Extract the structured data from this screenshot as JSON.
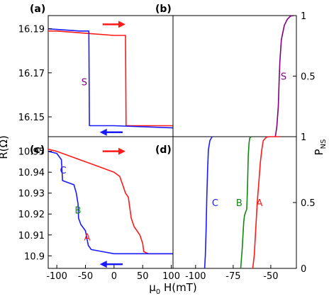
{
  "figure": {
    "y_axis_left_label": "R(Ω)",
    "y_axis_right_label": "P",
    "y_axis_right_label_sub": "NS",
    "x_axis_label": "μ",
    "x_axis_label_sub": "0",
    "x_axis_label_rest": " H(mT)"
  },
  "colors": {
    "red": "#ff1a1a",
    "blue": "#1a1aff",
    "green": "#118811",
    "purple": "#800080"
  },
  "chart_data": [
    {
      "panel": "(a)",
      "type": "line",
      "xlim": [
        -115,
        103
      ],
      "ylim": [
        16.141,
        16.196
      ],
      "yticks": [
        16.15,
        16.17,
        16.19
      ],
      "ytick_labels": [
        "16.15",
        "16.17",
        "16.19"
      ],
      "grid": false,
      "series": [
        {
          "color": "red",
          "points": [
            [
              -115,
              16.189
            ],
            [
              -100,
              16.189
            ],
            [
              -50,
              16.188
            ],
            [
              0,
              16.187
            ],
            [
              20,
              16.187
            ],
            [
              21,
              16.146
            ],
            [
              60,
              16.146
            ],
            [
              103,
              16.146
            ]
          ]
        },
        {
          "color": "blue",
          "points": [
            [
              -115,
              16.19
            ],
            [
              -60,
              16.189
            ],
            [
              -44,
              16.189
            ],
            [
              -43,
              16.146
            ],
            [
              0,
              16.146
            ],
            [
              103,
              16.145
            ]
          ]
        }
      ],
      "annotations": [
        {
          "text": "S",
          "x": -52,
          "y": 16.166,
          "color": "purple"
        },
        {
          "text": "arrow-right",
          "x": -20,
          "y": 16.192,
          "x_end": 15,
          "color": "red"
        },
        {
          "text": "arrow-left",
          "x": 15,
          "y": 16.143,
          "x_end": -20,
          "color": "blue"
        }
      ]
    },
    {
      "panel": "(b)",
      "type": "line",
      "xlim": [
        -115,
        -33
      ],
      "ylim": [
        0,
        1
      ],
      "yticks": [
        0.5,
        1
      ],
      "ytick_labels": [
        "0.5",
        "1"
      ],
      "grid": false,
      "series": [
        {
          "color": "purple",
          "points": [
            [
              -47,
              0
            ],
            [
              -46,
              0.08
            ],
            [
              -45,
              0.25
            ],
            [
              -44.5,
              0.45
            ],
            [
              -44,
              0.62
            ],
            [
              -43,
              0.8
            ],
            [
              -41,
              0.92
            ],
            [
              -39,
              0.97
            ],
            [
              -37,
              0.995
            ],
            [
              -35,
              1.0
            ]
          ]
        }
      ],
      "annotations": [
        {
          "text": "S",
          "x": -41.5,
          "y": 0.5,
          "color": "purple"
        }
      ]
    },
    {
      "panel": "(c)",
      "type": "line",
      "xlim": [
        -115,
        103
      ],
      "ylim": [
        10.894,
        10.957
      ],
      "xticks": [
        -100,
        -50,
        0,
        50,
        100
      ],
      "xtick_labels": [
        "-100",
        "-50",
        "0",
        "50",
        "100"
      ],
      "yticks": [
        10.9,
        10.91,
        10.92,
        10.93,
        10.94,
        10.95
      ],
      "ytick_labels": [
        "10.9",
        "10.91",
        "10.92",
        "10.93",
        "10.94",
        "10.95"
      ],
      "grid": false,
      "series": [
        {
          "color": "red",
          "points": [
            [
              -115,
              10.951
            ],
            [
              -100,
              10.95
            ],
            [
              -80,
              10.948
            ],
            [
              -60,
              10.946
            ],
            [
              -40,
              10.944
            ],
            [
              -20,
              10.942
            ],
            [
              0,
              10.94
            ],
            [
              10,
              10.938
            ],
            [
              15,
              10.934
            ],
            [
              20,
              10.93
            ],
            [
              25,
              10.928
            ],
            [
              30,
              10.918
            ],
            [
              35,
              10.914
            ],
            [
              45,
              10.91
            ],
            [
              50,
              10.906
            ],
            [
              52,
              10.902
            ],
            [
              60,
              10.901
            ],
            [
              103,
              10.901
            ]
          ]
        },
        {
          "color": "blue",
          "points": [
            [
              -115,
              10.95
            ],
            [
              -100,
              10.949
            ],
            [
              -92,
              10.946
            ],
            [
              -90,
              10.936
            ],
            [
              -80,
              10.935
            ],
            [
              -70,
              10.934
            ],
            [
              -66,
              10.93
            ],
            [
              -63,
              10.925
            ],
            [
              -62,
              10.918
            ],
            [
              -58,
              10.915
            ],
            [
              -50,
              10.912
            ],
            [
              -45,
              10.905
            ],
            [
              -40,
              10.903
            ],
            [
              -20,
              10.902
            ],
            [
              0,
              10.901
            ],
            [
              103,
              10.901
            ]
          ]
        }
      ],
      "annotations": [
        {
          "text": "C",
          "x": -89,
          "y": 10.941,
          "color": "blue"
        },
        {
          "text": "B",
          "x": -63,
          "y": 10.922,
          "color": "green"
        },
        {
          "text": "A",
          "x": -47,
          "y": 10.909,
          "color": "red"
        },
        {
          "text": "arrow-right",
          "x": -20,
          "y": 10.95,
          "x_end": 15,
          "color": "red"
        },
        {
          "text": "arrow-left",
          "x": 15,
          "y": 10.896,
          "x_end": -20,
          "color": "blue"
        }
      ]
    },
    {
      "panel": "(d)",
      "type": "line",
      "xlim": [
        -115,
        -33
      ],
      "ylim": [
        0,
        1
      ],
      "xticks": [
        -100,
        -75,
        -50
      ],
      "xtick_labels": [
        "-100",
        "-75",
        "-50"
      ],
      "yticks": [
        0,
        0.5,
        1
      ],
      "ytick_labels": [
        "0",
        "0.5",
        "1"
      ],
      "grid": false,
      "series": [
        {
          "color": "blue",
          "points": [
            [
              -94,
              0
            ],
            [
              -93.5,
              0.1
            ],
            [
              -93,
              0.3
            ],
            [
              -92.5,
              0.55
            ],
            [
              -92,
              0.75
            ],
            [
              -91.5,
              0.9
            ],
            [
              -90.5,
              0.97
            ],
            [
              -89,
              1.0
            ]
          ]
        },
        {
          "color": "green",
          "points": [
            [
              -70,
              0
            ],
            [
              -69,
              0.15
            ],
            [
              -68,
              0.35
            ],
            [
              -67.5,
              0.4
            ],
            [
              -67,
              0.42
            ],
            [
              -66,
              0.45
            ],
            [
              -65.5,
              0.6
            ],
            [
              -65,
              0.85
            ],
            [
              -64.5,
              0.95
            ],
            [
              -64,
              0.99
            ],
            [
              -63,
              1.0
            ]
          ]
        },
        {
          "color": "red",
          "points": [
            [
              -62,
              0
            ],
            [
              -61,
              0.1
            ],
            [
              -60,
              0.3
            ],
            [
              -59,
              0.5
            ],
            [
              -58,
              0.65
            ],
            [
              -57,
              0.8
            ],
            [
              -56,
              0.9
            ],
            [
              -55,
              0.97
            ],
            [
              -53,
              0.995
            ],
            [
              -51,
              1.0
            ],
            [
              -44,
              1.0
            ]
          ]
        }
      ],
      "annotations": [
        {
          "text": "C",
          "x": -87,
          "y": 0.5,
          "color": "blue"
        },
        {
          "text": "B",
          "x": -71,
          "y": 0.5,
          "color": "green"
        },
        {
          "text": "A",
          "x": -57.5,
          "y": 0.5,
          "color": "red"
        }
      ]
    }
  ]
}
